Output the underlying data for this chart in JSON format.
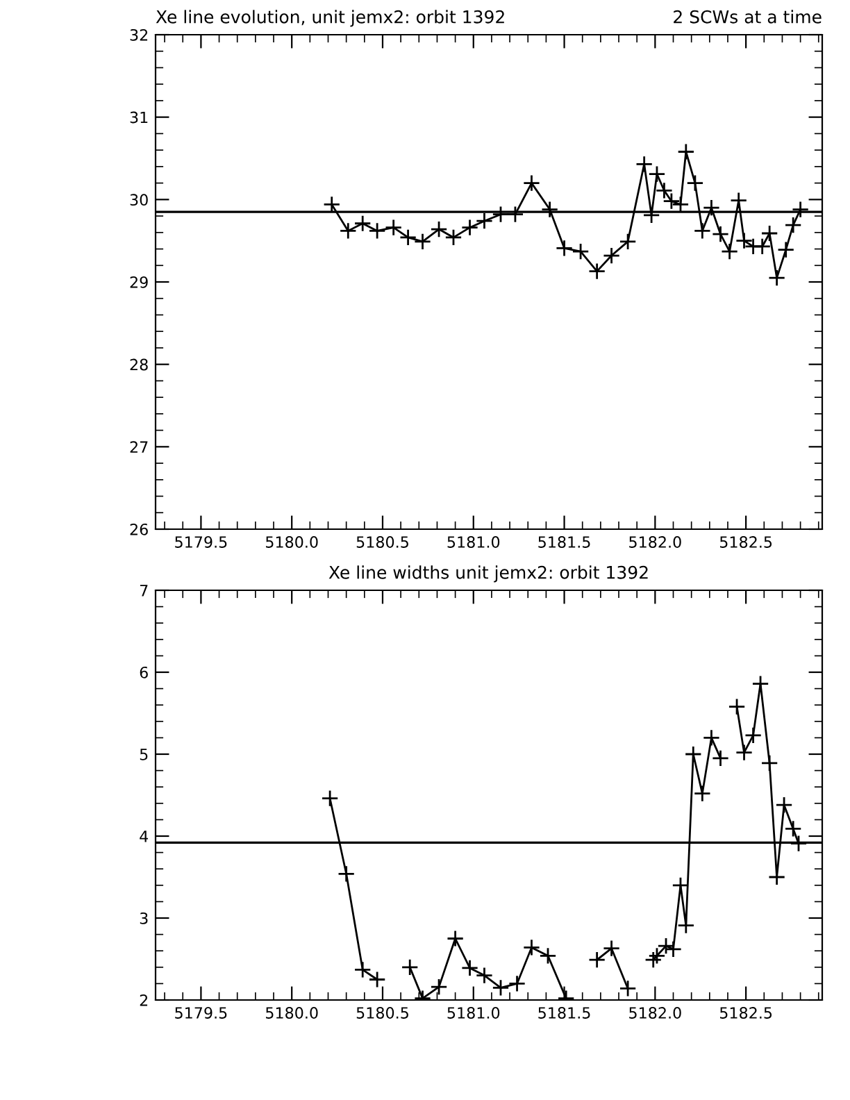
{
  "chart_data": [
    {
      "type": "line",
      "title": "Xe line evolution, unit jemx2: orbit 1392",
      "subtitle": "2 SCWs at a time",
      "marker": "cross",
      "line_style": "solid",
      "grid": false,
      "legend": false,
      "x": [
        5180.22,
        5180.31,
        5180.39,
        5180.47,
        5180.56,
        5180.64,
        5180.72,
        5180.81,
        5180.89,
        5180.98,
        5181.06,
        5181.15,
        5181.23,
        5181.32,
        5181.42,
        5181.5,
        5181.59,
        5181.68,
        5181.76,
        5181.85,
        5181.94,
        5181.98,
        5182.01,
        5182.05,
        5182.09,
        5182.14,
        5182.17,
        5182.22,
        5182.26,
        5182.31,
        5182.36,
        5182.41,
        5182.46,
        5182.49,
        5182.54,
        5182.59,
        5182.63,
        5182.67,
        5182.72,
        5182.76,
        5182.8
      ],
      "series": [
        {
          "color": "#000000",
          "values": [
            29.94,
            29.62,
            29.71,
            29.62,
            29.66,
            29.54,
            29.49,
            29.64,
            29.54,
            29.66,
            29.74,
            29.82,
            29.82,
            30.2,
            29.88,
            29.41,
            29.37,
            29.13,
            29.32,
            29.49,
            30.43,
            29.81,
            30.31,
            30.11,
            29.98,
            29.94,
            30.58,
            30.2,
            29.62,
            29.9,
            29.58,
            29.37,
            29.99,
            29.5,
            29.43,
            29.43,
            29.59,
            29.05,
            29.39,
            29.69,
            29.88
          ]
        }
      ],
      "ref_lines": [
        {
          "axis": "y",
          "value": 29.85,
          "label": null,
          "color": "#000000"
        }
      ],
      "xlim": [
        5179.25,
        5182.92
      ],
      "xticks": [
        {
          "value": 5179.5,
          "label": "5179.5"
        },
        {
          "value": 5180.0,
          "label": "5180.0"
        },
        {
          "value": 5180.5,
          "label": "5180.5"
        },
        {
          "value": 5181.0,
          "label": "5181.0"
        },
        {
          "value": 5181.5,
          "label": "5181.5"
        },
        {
          "value": 5182.0,
          "label": "5182.0"
        },
        {
          "value": 5182.5,
          "label": "5182.5"
        }
      ],
      "ylim": [
        26,
        32
      ],
      "yticks": [
        26,
        27,
        28,
        29,
        30,
        31,
        32
      ]
    },
    {
      "type": "line",
      "title": "Xe line widths unit jemx2: orbit 1392",
      "marker": "cross",
      "line_style": "solid",
      "grid": false,
      "legend": false,
      "x": [
        5180.21,
        5180.3,
        5180.39,
        5180.47,
        5180.56,
        5180.65,
        5180.72,
        5180.81,
        5180.9,
        5180.98,
        5181.06,
        5181.15,
        5181.24,
        5181.32,
        5181.41,
        5181.51,
        5181.59,
        5181.68,
        5181.76,
        5181.85,
        5181.92,
        5181.99,
        5182.01,
        5182.06,
        5182.1,
        5182.14,
        5182.17,
        5182.21,
        5182.26,
        5182.31,
        5182.36,
        5182.4,
        5182.45,
        5182.49,
        5182.54,
        5182.58,
        5182.63,
        5182.67,
        5182.71,
        5182.76,
        5182.79
      ],
      "series": [
        {
          "color": "#000000",
          "values": [
            4.46,
            3.54,
            2.37,
            2.25,
            null,
            2.4,
            2.02,
            2.16,
            2.75,
            2.39,
            2.3,
            2.15,
            2.2,
            2.64,
            2.54,
            2.02,
            null,
            2.49,
            2.63,
            2.14,
            null,
            2.49,
            2.54,
            2.66,
            2.62,
            3.4,
            2.91,
            5.0,
            4.52,
            5.2,
            4.95,
            null,
            5.58,
            5.02,
            5.23,
            5.86,
            4.89,
            3.5,
            4.38,
            4.09,
            3.91
          ]
        }
      ],
      "ref_lines": [
        {
          "axis": "y",
          "value": 3.92,
          "label": null,
          "color": "#000000"
        }
      ],
      "xlim": [
        5179.25,
        5182.92
      ],
      "xticks": [
        {
          "value": 5179.5,
          "label": "5179.5"
        },
        {
          "value": 5180.0,
          "label": "5180.0"
        },
        {
          "value": 5180.5,
          "label": "5180.5"
        },
        {
          "value": 5181.0,
          "label": "5181.0"
        },
        {
          "value": 5181.5,
          "label": "5181.5"
        },
        {
          "value": 5182.0,
          "label": "5182.0"
        },
        {
          "value": 5182.5,
          "label": "5182.5"
        }
      ],
      "ylim": [
        2,
        7
      ],
      "yticks": [
        2,
        3,
        4,
        5,
        6,
        7
      ]
    }
  ]
}
